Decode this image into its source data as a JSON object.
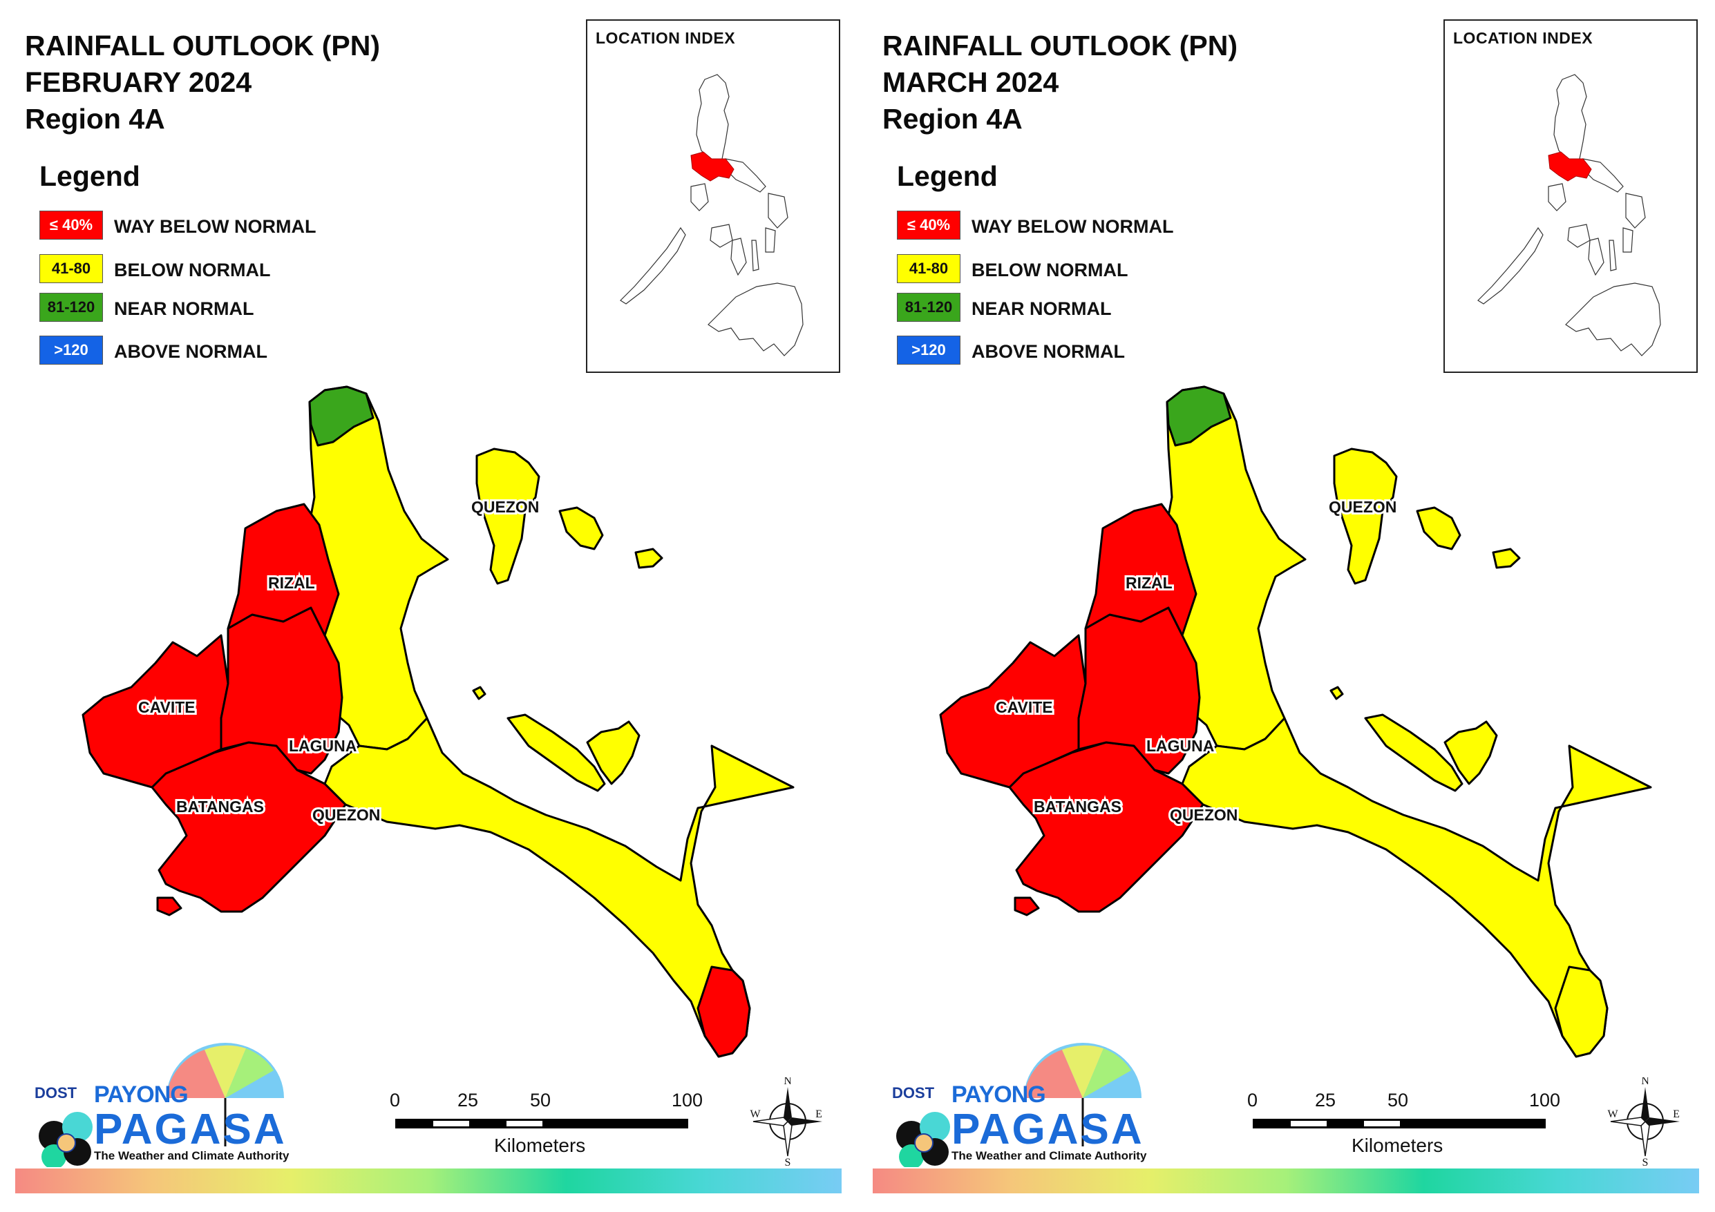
{
  "legend_items": [
    {
      "code": "≤ 40%",
      "label": "WAY BELOW NORMAL",
      "color": "#ff0000",
      "text_color": "#ffffff"
    },
    {
      "code": "41-80",
      "label": "BELOW NORMAL",
      "color": "#ffff00",
      "text_color": "#111111"
    },
    {
      "code": "81-120",
      "label": "NEAR NORMAL",
      "color": "#3aa61c",
      "text_color": "#111111"
    },
    {
      "code": ">120",
      "label": "ABOVE NORMAL",
      "color": "#1463e6",
      "text_color": "#ffffff"
    }
  ],
  "colors": {
    "way_below_normal": "#ff0000",
    "below_normal": "#ffff00",
    "near_normal": "#3aa61c",
    "above_normal": "#1463e6",
    "border": "#000000"
  },
  "panels": [
    {
      "title_line1": "RAINFALL OUTLOOK (PN)",
      "title_line2": "FEBRUARY 2024",
      "title_line3": "Region 4A",
      "legend_title": "Legend",
      "location_index_title": "LOCATION INDEX",
      "provinces": {
        "rizal": {
          "name": "RIZAL",
          "category": "way_below_normal"
        },
        "cavite": {
          "name": "CAVITE",
          "category": "way_below_normal"
        },
        "laguna": {
          "name": "LAGUNA",
          "category": "way_below_normal"
        },
        "batangas": {
          "name": "BATANGAS",
          "category": "way_below_normal"
        },
        "quezon_south": {
          "name": "QUEZON",
          "category": "below_normal"
        },
        "quezon_north": {
          "name": "QUEZON",
          "category": "below_normal"
        }
      },
      "quezon_tip_category": "way_below_normal",
      "scale_labels": [
        "0",
        "25",
        "50",
        "100"
      ],
      "scale_unit": "Kilometers",
      "compass": {
        "n": "N",
        "s": "S",
        "e": "E",
        "w": "W"
      },
      "logo": {
        "dost": "DOST",
        "payong": "PAYONG",
        "pagasa": "PAGASA",
        "tagline": "The Weather and Climate Authority"
      }
    },
    {
      "title_line1": "RAINFALL OUTLOOK (PN)",
      "title_line2": "MARCH 2024",
      "title_line3": "Region 4A",
      "legend_title": "Legend",
      "location_index_title": "LOCATION INDEX",
      "provinces": {
        "rizal": {
          "name": "RIZAL",
          "category": "way_below_normal"
        },
        "cavite": {
          "name": "CAVITE",
          "category": "way_below_normal"
        },
        "laguna": {
          "name": "LAGUNA",
          "category": "way_below_normal"
        },
        "batangas": {
          "name": "BATANGAS",
          "category": "way_below_normal"
        },
        "quezon_south": {
          "name": "QUEZON",
          "category": "below_normal"
        },
        "quezon_north": {
          "name": "QUEZON",
          "category": "below_normal"
        }
      },
      "quezon_tip_category": "below_normal",
      "scale_labels": [
        "0",
        "25",
        "50",
        "100"
      ],
      "scale_unit": "Kilometers",
      "compass": {
        "n": "N",
        "s": "S",
        "e": "E",
        "w": "W"
      },
      "logo": {
        "dost": "DOST",
        "payong": "PAYONG",
        "pagasa": "PAGASA",
        "tagline": "The Weather and Climate Authority"
      }
    }
  ]
}
